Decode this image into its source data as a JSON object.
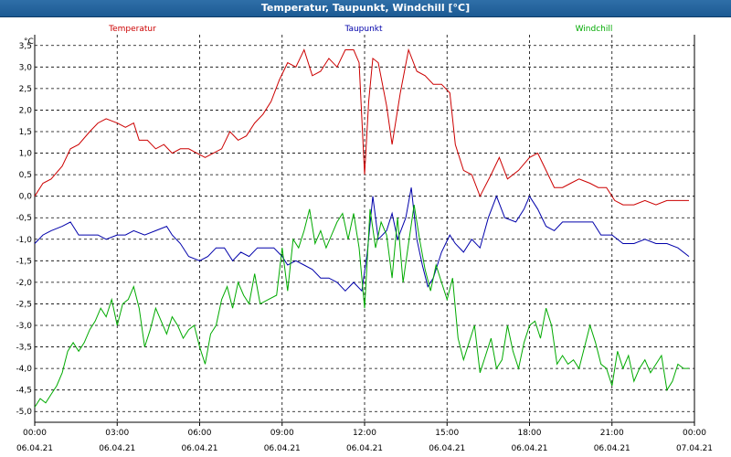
{
  "window": {
    "title": "Temperatur, Taupunkt, Windchill [°C]"
  },
  "chart_data": {
    "type": "line",
    "title": "Temperatur, Taupunkt, Windchill [°C]",
    "ylabel": "°C",
    "ylim": [
      -5.25,
      3.75
    ],
    "xlim": [
      0,
      24
    ],
    "grid": true,
    "y_ticks": [
      "3,5",
      "3,0",
      "2,5",
      "2,0",
      "1,5",
      "1,0",
      "0,5",
      "0,0",
      "-0,5",
      "-1,0",
      "-1,5",
      "-2,0",
      "-2,5",
      "-3,0",
      "-3,5",
      "-4,0",
      "-4,5",
      "-5,0"
    ],
    "x_ticks": [
      {
        "time": "00:00",
        "date": "06.04.21"
      },
      {
        "time": "03:00",
        "date": "06.04.21"
      },
      {
        "time": "06:00",
        "date": "06.04.21"
      },
      {
        "time": "09:00",
        "date": "06.04.21"
      },
      {
        "time": "12:00",
        "date": "06.04.21"
      },
      {
        "time": "15:00",
        "date": "06.04.21"
      },
      {
        "time": "18:00",
        "date": "06.04.21"
      },
      {
        "time": "21:00",
        "date": "06.04.21"
      },
      {
        "time": "00:00",
        "date": "07.04.21"
      }
    ],
    "series": [
      {
        "name": "Temperatur",
        "color": "#cc0000",
        "points": [
          [
            0.0,
            0.0
          ],
          [
            0.3,
            0.3
          ],
          [
            0.6,
            0.4
          ],
          [
            1.0,
            0.7
          ],
          [
            1.3,
            1.1
          ],
          [
            1.6,
            1.2
          ],
          [
            2.0,
            1.5
          ],
          [
            2.3,
            1.7
          ],
          [
            2.6,
            1.8
          ],
          [
            3.0,
            1.7
          ],
          [
            3.3,
            1.6
          ],
          [
            3.6,
            1.7
          ],
          [
            3.8,
            1.3
          ],
          [
            4.1,
            1.3
          ],
          [
            4.4,
            1.1
          ],
          [
            4.7,
            1.2
          ],
          [
            5.0,
            1.0
          ],
          [
            5.3,
            1.1
          ],
          [
            5.6,
            1.1
          ],
          [
            5.9,
            1.0
          ],
          [
            6.2,
            0.9
          ],
          [
            6.5,
            1.0
          ],
          [
            6.8,
            1.1
          ],
          [
            7.1,
            1.5
          ],
          [
            7.4,
            1.3
          ],
          [
            7.7,
            1.4
          ],
          [
            8.0,
            1.7
          ],
          [
            8.3,
            1.9
          ],
          [
            8.6,
            2.2
          ],
          [
            8.9,
            2.7
          ],
          [
            9.2,
            3.1
          ],
          [
            9.5,
            3.0
          ],
          [
            9.8,
            3.4
          ],
          [
            10.1,
            2.8
          ],
          [
            10.4,
            2.9
          ],
          [
            10.7,
            3.2
          ],
          [
            11.0,
            3.0
          ],
          [
            11.3,
            3.4
          ],
          [
            11.6,
            3.4
          ],
          [
            11.8,
            3.1
          ],
          [
            12.0,
            0.5
          ],
          [
            12.15,
            2.2
          ],
          [
            12.3,
            3.2
          ],
          [
            12.5,
            3.1
          ],
          [
            12.8,
            2.1
          ],
          [
            13.0,
            1.2
          ],
          [
            13.3,
            2.4
          ],
          [
            13.6,
            3.4
          ],
          [
            13.9,
            2.9
          ],
          [
            14.2,
            2.8
          ],
          [
            14.5,
            2.6
          ],
          [
            14.8,
            2.6
          ],
          [
            15.1,
            2.4
          ],
          [
            15.3,
            1.2
          ],
          [
            15.6,
            0.6
          ],
          [
            15.9,
            0.5
          ],
          [
            16.2,
            0.0
          ],
          [
            16.6,
            0.5
          ],
          [
            16.9,
            0.9
          ],
          [
            17.2,
            0.4
          ],
          [
            17.6,
            0.6
          ],
          [
            18.0,
            0.9
          ],
          [
            18.3,
            1.0
          ],
          [
            18.6,
            0.6
          ],
          [
            18.9,
            0.2
          ],
          [
            19.2,
            0.2
          ],
          [
            19.5,
            0.3
          ],
          [
            19.8,
            0.4
          ],
          [
            20.2,
            0.3
          ],
          [
            20.5,
            0.2
          ],
          [
            20.8,
            0.2
          ],
          [
            21.1,
            -0.1
          ],
          [
            21.4,
            -0.2
          ],
          [
            21.8,
            -0.2
          ],
          [
            22.2,
            -0.1
          ],
          [
            22.6,
            -0.2
          ],
          [
            23.0,
            -0.1
          ],
          [
            23.4,
            -0.1
          ],
          [
            23.8,
            -0.1
          ]
        ]
      },
      {
        "name": "Taupunkt",
        "color": "#0000aa",
        "points": [
          [
            0.0,
            -1.1
          ],
          [
            0.3,
            -0.9
          ],
          [
            0.6,
            -0.8
          ],
          [
            1.0,
            -0.7
          ],
          [
            1.3,
            -0.6
          ],
          [
            1.6,
            -0.9
          ],
          [
            2.0,
            -0.9
          ],
          [
            2.3,
            -0.9
          ],
          [
            2.6,
            -1.0
          ],
          [
            3.0,
            -0.9
          ],
          [
            3.3,
            -0.9
          ],
          [
            3.6,
            -0.8
          ],
          [
            4.0,
            -0.9
          ],
          [
            4.4,
            -0.8
          ],
          [
            4.8,
            -0.7
          ],
          [
            5.0,
            -0.9
          ],
          [
            5.3,
            -1.1
          ],
          [
            5.6,
            -1.4
          ],
          [
            6.0,
            -1.5
          ],
          [
            6.3,
            -1.4
          ],
          [
            6.6,
            -1.2
          ],
          [
            6.9,
            -1.2
          ],
          [
            7.2,
            -1.5
          ],
          [
            7.5,
            -1.3
          ],
          [
            7.8,
            -1.4
          ],
          [
            8.1,
            -1.2
          ],
          [
            8.4,
            -1.2
          ],
          [
            8.7,
            -1.2
          ],
          [
            9.0,
            -1.4
          ],
          [
            9.2,
            -1.6
          ],
          [
            9.5,
            -1.5
          ],
          [
            9.8,
            -1.6
          ],
          [
            10.1,
            -1.7
          ],
          [
            10.4,
            -1.9
          ],
          [
            10.7,
            -1.9
          ],
          [
            11.0,
            -2.0
          ],
          [
            11.3,
            -2.2
          ],
          [
            11.6,
            -2.0
          ],
          [
            11.9,
            -2.2
          ],
          [
            12.1,
            -1.3
          ],
          [
            12.3,
            0.0
          ],
          [
            12.5,
            -1.0
          ],
          [
            12.8,
            -0.8
          ],
          [
            13.0,
            -0.4
          ],
          [
            13.2,
            -1.0
          ],
          [
            13.5,
            -0.5
          ],
          [
            13.7,
            0.2
          ],
          [
            13.9,
            -1.0
          ],
          [
            14.1,
            -1.6
          ],
          [
            14.3,
            -2.1
          ],
          [
            14.5,
            -1.9
          ],
          [
            14.8,
            -1.3
          ],
          [
            15.1,
            -0.9
          ],
          [
            15.3,
            -1.1
          ],
          [
            15.6,
            -1.3
          ],
          [
            15.9,
            -1.0
          ],
          [
            16.2,
            -1.2
          ],
          [
            16.5,
            -0.5
          ],
          [
            16.8,
            0.0
          ],
          [
            17.1,
            -0.5
          ],
          [
            17.5,
            -0.6
          ],
          [
            17.8,
            -0.3
          ],
          [
            18.0,
            0.0
          ],
          [
            18.3,
            -0.3
          ],
          [
            18.6,
            -0.7
          ],
          [
            18.9,
            -0.8
          ],
          [
            19.2,
            -0.6
          ],
          [
            19.6,
            -0.6
          ],
          [
            20.0,
            -0.6
          ],
          [
            20.3,
            -0.6
          ],
          [
            20.6,
            -0.9
          ],
          [
            21.0,
            -0.9
          ],
          [
            21.4,
            -1.1
          ],
          [
            21.8,
            -1.1
          ],
          [
            22.2,
            -1.0
          ],
          [
            22.6,
            -1.1
          ],
          [
            23.0,
            -1.1
          ],
          [
            23.4,
            -1.2
          ],
          [
            23.8,
            -1.4
          ]
        ]
      },
      {
        "name": "Windchill",
        "color": "#00aa00",
        "points": [
          [
            0.0,
            -4.9
          ],
          [
            0.2,
            -4.7
          ],
          [
            0.4,
            -4.8
          ],
          [
            0.6,
            -4.6
          ],
          [
            0.8,
            -4.4
          ],
          [
            1.0,
            -4.1
          ],
          [
            1.2,
            -3.6
          ],
          [
            1.4,
            -3.4
          ],
          [
            1.6,
            -3.6
          ],
          [
            1.8,
            -3.4
          ],
          [
            2.0,
            -3.1
          ],
          [
            2.2,
            -2.9
          ],
          [
            2.4,
            -2.6
          ],
          [
            2.6,
            -2.8
          ],
          [
            2.8,
            -2.4
          ],
          [
            3.0,
            -3.0
          ],
          [
            3.2,
            -2.5
          ],
          [
            3.4,
            -2.4
          ],
          [
            3.6,
            -2.1
          ],
          [
            3.8,
            -2.6
          ],
          [
            4.0,
            -3.5
          ],
          [
            4.2,
            -3.1
          ],
          [
            4.4,
            -2.6
          ],
          [
            4.6,
            -2.9
          ],
          [
            4.8,
            -3.2
          ],
          [
            5.0,
            -2.8
          ],
          [
            5.2,
            -3.0
          ],
          [
            5.4,
            -3.3
          ],
          [
            5.6,
            -3.1
          ],
          [
            5.8,
            -3.0
          ],
          [
            6.0,
            -3.5
          ],
          [
            6.2,
            -3.9
          ],
          [
            6.4,
            -3.2
          ],
          [
            6.6,
            -3.0
          ],
          [
            6.8,
            -2.4
          ],
          [
            7.0,
            -2.1
          ],
          [
            7.2,
            -2.6
          ],
          [
            7.4,
            -2.0
          ],
          [
            7.6,
            -2.3
          ],
          [
            7.8,
            -2.5
          ],
          [
            8.0,
            -1.8
          ],
          [
            8.2,
            -2.5
          ],
          [
            8.5,
            -2.4
          ],
          [
            8.8,
            -2.3
          ],
          [
            9.0,
            -1.2
          ],
          [
            9.2,
            -2.2
          ],
          [
            9.4,
            -1.0
          ],
          [
            9.6,
            -1.2
          ],
          [
            9.8,
            -0.8
          ],
          [
            10.0,
            -0.3
          ],
          [
            10.2,
            -1.1
          ],
          [
            10.4,
            -0.8
          ],
          [
            10.6,
            -1.2
          ],
          [
            10.8,
            -0.9
          ],
          [
            11.0,
            -0.6
          ],
          [
            11.2,
            -0.4
          ],
          [
            11.4,
            -1.0
          ],
          [
            11.6,
            -0.4
          ],
          [
            11.8,
            -1.2
          ],
          [
            12.0,
            -2.6
          ],
          [
            12.2,
            -0.3
          ],
          [
            12.4,
            -1.2
          ],
          [
            12.6,
            -0.6
          ],
          [
            12.8,
            -0.9
          ],
          [
            13.0,
            -1.9
          ],
          [
            13.2,
            -0.5
          ],
          [
            13.4,
            -2.0
          ],
          [
            13.6,
            -1.1
          ],
          [
            13.8,
            -0.2
          ],
          [
            14.0,
            -1.0
          ],
          [
            14.2,
            -1.7
          ],
          [
            14.4,
            -2.2
          ],
          [
            14.6,
            -1.6
          ],
          [
            14.8,
            -2.0
          ],
          [
            15.0,
            -2.4
          ],
          [
            15.2,
            -1.9
          ],
          [
            15.4,
            -3.3
          ],
          [
            15.6,
            -3.8
          ],
          [
            15.8,
            -3.4
          ],
          [
            16.0,
            -3.0
          ],
          [
            16.2,
            -4.1
          ],
          [
            16.4,
            -3.7
          ],
          [
            16.6,
            -3.3
          ],
          [
            16.8,
            -4.0
          ],
          [
            17.0,
            -3.8
          ],
          [
            17.2,
            -3.0
          ],
          [
            17.4,
            -3.6
          ],
          [
            17.6,
            -4.0
          ],
          [
            17.8,
            -3.4
          ],
          [
            18.0,
            -3.0
          ],
          [
            18.2,
            -2.9
          ],
          [
            18.4,
            -3.3
          ],
          [
            18.6,
            -2.6
          ],
          [
            18.8,
            -3.0
          ],
          [
            19.0,
            -3.9
          ],
          [
            19.2,
            -3.7
          ],
          [
            19.4,
            -3.9
          ],
          [
            19.6,
            -3.8
          ],
          [
            19.8,
            -4.0
          ],
          [
            20.0,
            -3.5
          ],
          [
            20.2,
            -3.0
          ],
          [
            20.4,
            -3.4
          ],
          [
            20.6,
            -3.9
          ],
          [
            20.8,
            -4.0
          ],
          [
            21.0,
            -4.4
          ],
          [
            21.2,
            -3.6
          ],
          [
            21.4,
            -4.0
          ],
          [
            21.6,
            -3.7
          ],
          [
            21.8,
            -4.3
          ],
          [
            22.0,
            -4.0
          ],
          [
            22.2,
            -3.8
          ],
          [
            22.4,
            -4.1
          ],
          [
            22.6,
            -3.9
          ],
          [
            22.8,
            -3.7
          ],
          [
            23.0,
            -4.5
          ],
          [
            23.2,
            -4.3
          ],
          [
            23.4,
            -3.9
          ],
          [
            23.6,
            -4.0
          ],
          [
            23.8,
            -4.0
          ]
        ]
      }
    ]
  }
}
